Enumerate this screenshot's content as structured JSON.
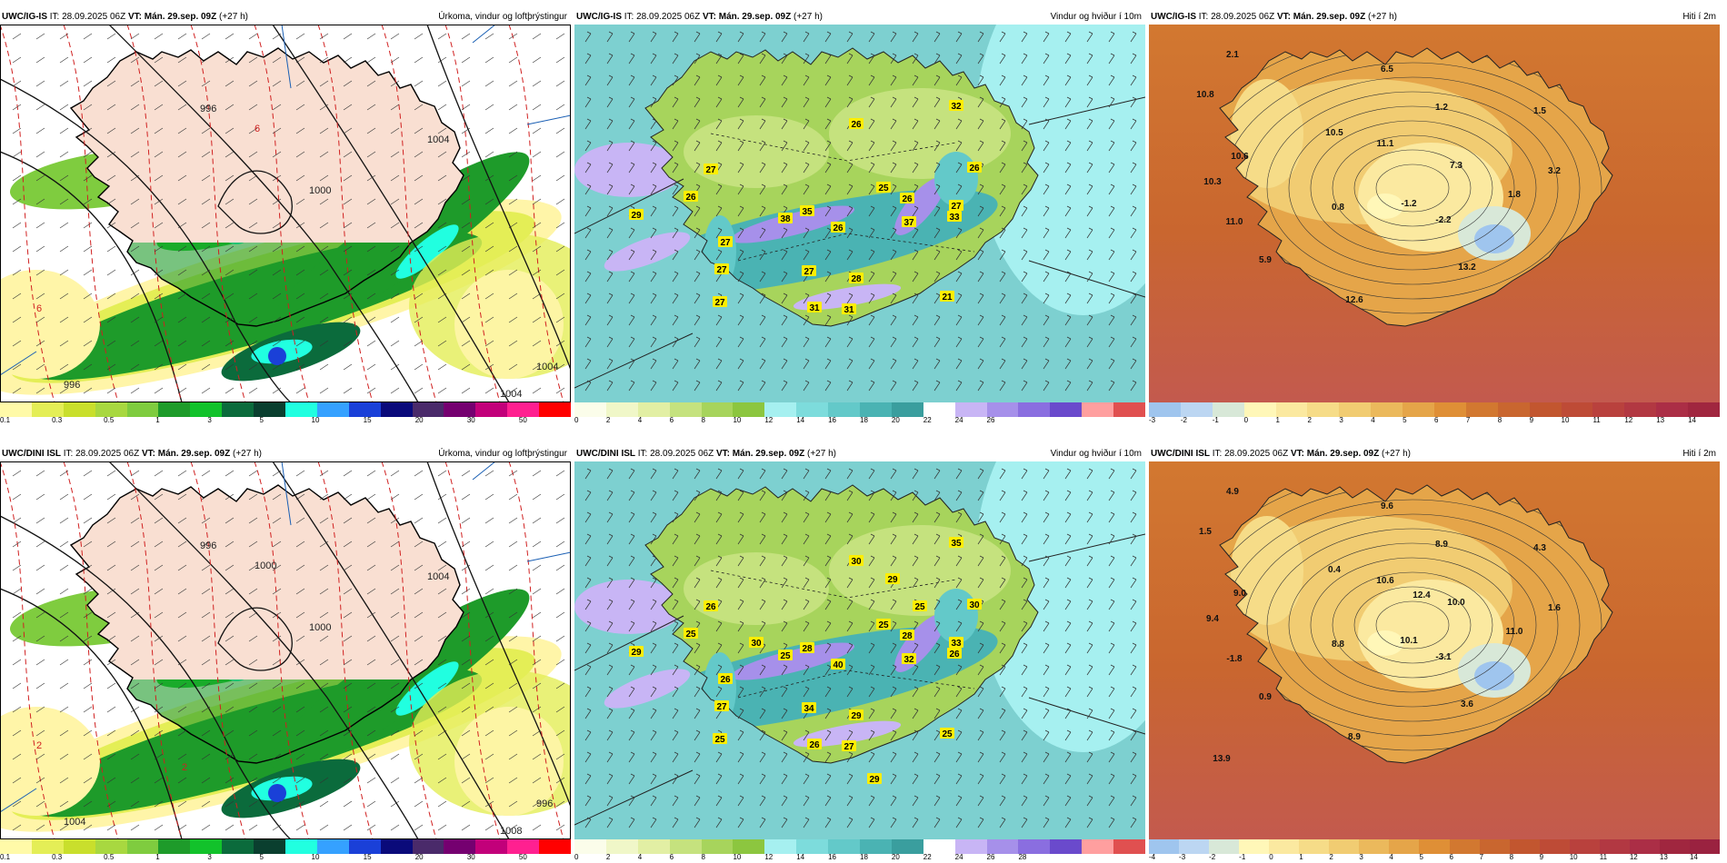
{
  "panels": [
    {
      "id": "p1",
      "model": "UWC/IG-IS",
      "it": "IT: 28.09.2025 06Z",
      "vt_label": "VT:",
      "vt": "Mán. 29.sep. 09Z",
      "lead": "(+27 h)",
      "title": "Úrkoma, vindur og loftþrýstingur",
      "colorbar": {
        "colors": [
          "#fffaa8",
          "#e4ee56",
          "#c9df2c",
          "#a8d840",
          "#7fcc3f",
          "#1e9b2a",
          "#12c22b",
          "#0b6b3c",
          "#0a3f2f",
          "#21ffe0",
          "#35a1ff",
          "#1a40d8",
          "#0a0a7a",
          "#4a2a6a",
          "#750070",
          "#c2007a",
          "#ff2090",
          "#ff0000"
        ],
        "ticks": [
          "0.1",
          "0.3",
          "0.5",
          "1",
          "3",
          "5",
          "10",
          "15",
          "20",
          "30",
          "50"
        ]
      },
      "isobars": [
        "996",
        "1000",
        "1004",
        "1004",
        "996",
        "1004",
        "6",
        "6"
      ],
      "labels": []
    },
    {
      "id": "p2",
      "model": "UWC/IG-IS",
      "it": "IT: 28.09.2025 06Z",
      "vt_label": "VT:",
      "vt": "Mán. 29.sep. 09Z",
      "lead": "(+27 h)",
      "title": "Vindur og hviður í 10m",
      "colorbar": {
        "colors": [
          "#fbfdea",
          "#f0f7c8",
          "#e2efa4",
          "#c5e27e",
          "#a7d45c",
          "#8cc63f",
          "#a6f0f0",
          "#7ddcdc",
          "#63c9c9",
          "#4ab3b3",
          "#3a9e9e",
          "#ffffff",
          "#c8b5f5",
          "#a690ea",
          "#8a6ee0",
          "#6a4acc",
          "#ff9f9f",
          "#e05050"
        ],
        "ticks": [
          "0",
          "2",
          "4",
          "6",
          "8",
          "10",
          "12",
          "14",
          "16",
          "18",
          "20",
          "22",
          "24",
          "26"
        ]
      },
      "labels": [
        "27",
        "26",
        "29",
        "27",
        "27",
        "27",
        "38",
        "35",
        "26",
        "27",
        "31",
        "28",
        "31",
        "26",
        "26",
        "32",
        "26",
        "25",
        "37",
        "33",
        "27",
        "21"
      ]
    },
    {
      "id": "p3",
      "model": "UWC/IG-IS",
      "it": "IT: 28.09.2025 06Z",
      "vt_label": "VT:",
      "vt": "Mán. 29.sep. 09Z",
      "lead": "(+27 h)",
      "title": "Hiti í 2m",
      "colorbar": {
        "colors": [
          "#9fc5ee",
          "#bcd6f2",
          "#d8e8d8",
          "#fff7b8",
          "#fbe9a0",
          "#f6dc88",
          "#f1cc72",
          "#ebb95c",
          "#e5a549",
          "#df8f36",
          "#d27830",
          "#c9662f",
          "#c2562f",
          "#be4b36",
          "#b9413d",
          "#b23842",
          "#ab2e46",
          "#a0263f"
        ],
        "ticks": [
          "-3",
          "-2",
          "-1",
          "0",
          "1",
          "2",
          "3",
          "4",
          "5",
          "6",
          "7",
          "8",
          "9",
          "10",
          "11",
          "12",
          "13",
          "14"
        ]
      },
      "labels": [
        "2.1",
        "6.5",
        "10.8",
        "1.2",
        "1.5",
        "10.5",
        "11.1",
        "10.6",
        "7.3",
        "3.2",
        "10.3",
        "0.8",
        "-1.2",
        "1.8",
        "11.0",
        "-2.2",
        "5.9",
        "13.2",
        "12.6"
      ]
    },
    {
      "id": "p4",
      "model": "UWC/DINI ISL",
      "it": "IT: 28.09.2025 06Z",
      "vt_label": "VT:",
      "vt": "Mán. 29.sep. 09Z",
      "lead": "(+27 h)",
      "title": "Úrkoma, vindur og loftþrýstingur",
      "colorbar": {
        "colors": [
          "#fffaa8",
          "#e4ee56",
          "#c9df2c",
          "#a8d840",
          "#7fcc3f",
          "#1e9b2a",
          "#12c22b",
          "#0b6b3c",
          "#0a3f2f",
          "#21ffe0",
          "#35a1ff",
          "#1a40d8",
          "#0a0a7a",
          "#4a2a6a",
          "#750070",
          "#c2007a",
          "#ff2090",
          "#ff0000"
        ],
        "ticks": [
          "0.1",
          "0.3",
          "0.5",
          "1",
          "3",
          "5",
          "10",
          "15",
          "20",
          "30",
          "50"
        ]
      },
      "isobars": [
        "996",
        "1000",
        "1004",
        "1008",
        "1004",
        "996",
        "1000",
        "2",
        "2"
      ],
      "labels": []
    },
    {
      "id": "p5",
      "model": "UWC/DINI ISL",
      "it": "IT: 28.09.2025 06Z",
      "vt_label": "VT:",
      "vt": "Mán. 29.sep. 09Z",
      "lead": "(+27 h)",
      "title": "Vindur og hviður í 10m",
      "colorbar": {
        "colors": [
          "#fbfdea",
          "#f0f7c8",
          "#e2efa4",
          "#c5e27e",
          "#a7d45c",
          "#8cc63f",
          "#a6f0f0",
          "#7ddcdc",
          "#63c9c9",
          "#4ab3b3",
          "#3a9e9e",
          "#ffffff",
          "#c8b5f5",
          "#a690ea",
          "#8a6ee0",
          "#6a4acc",
          "#ff9f9f",
          "#e05050"
        ],
        "ticks": [
          "0",
          "2",
          "4",
          "6",
          "8",
          "10",
          "12",
          "14",
          "16",
          "18",
          "20",
          "22",
          "24",
          "26",
          "28"
        ]
      },
      "labels": [
        "26",
        "25",
        "29",
        "26",
        "27",
        "25",
        "25",
        "28",
        "40",
        "34",
        "26",
        "29",
        "27",
        "30",
        "28",
        "35",
        "30",
        "25",
        "32",
        "26",
        "33",
        "25",
        "29",
        "25",
        "30",
        "29"
      ]
    },
    {
      "id": "p6",
      "model": "UWC/DINI ISL",
      "it": "IT: 28.09.2025 06Z",
      "vt_label": "VT:",
      "vt": "Mán. 29.sep. 09Z",
      "lead": "(+27 h)",
      "title": "Hiti í 2m",
      "colorbar": {
        "colors": [
          "#9fc5ee",
          "#bcd6f2",
          "#d8e8d8",
          "#fff7b8",
          "#fbe9a0",
          "#f6dc88",
          "#f1cc72",
          "#ebb95c",
          "#e5a549",
          "#df8f36",
          "#d27830",
          "#c9662f",
          "#c2562f",
          "#be4b36",
          "#b9413d",
          "#b23842",
          "#ab2e46",
          "#a0263f",
          "#9a2240"
        ],
        "ticks": [
          "-4",
          "-3",
          "-2",
          "-1",
          "0",
          "1",
          "2",
          "3",
          "4",
          "5",
          "6",
          "7",
          "8",
          "9",
          "10",
          "11",
          "12",
          "13",
          "14"
        ]
      },
      "labels": [
        "4.9",
        "9.6",
        "1.5",
        "8.9",
        "4.3",
        "0.4",
        "10.6",
        "9.0",
        "10.0",
        "1.6",
        "9.4",
        "8.8",
        "10.1",
        "11.0",
        "-1.8",
        "-3.1",
        "0.9",
        "3.6",
        "8.9",
        "13.9",
        "12.4"
      ]
    }
  ]
}
